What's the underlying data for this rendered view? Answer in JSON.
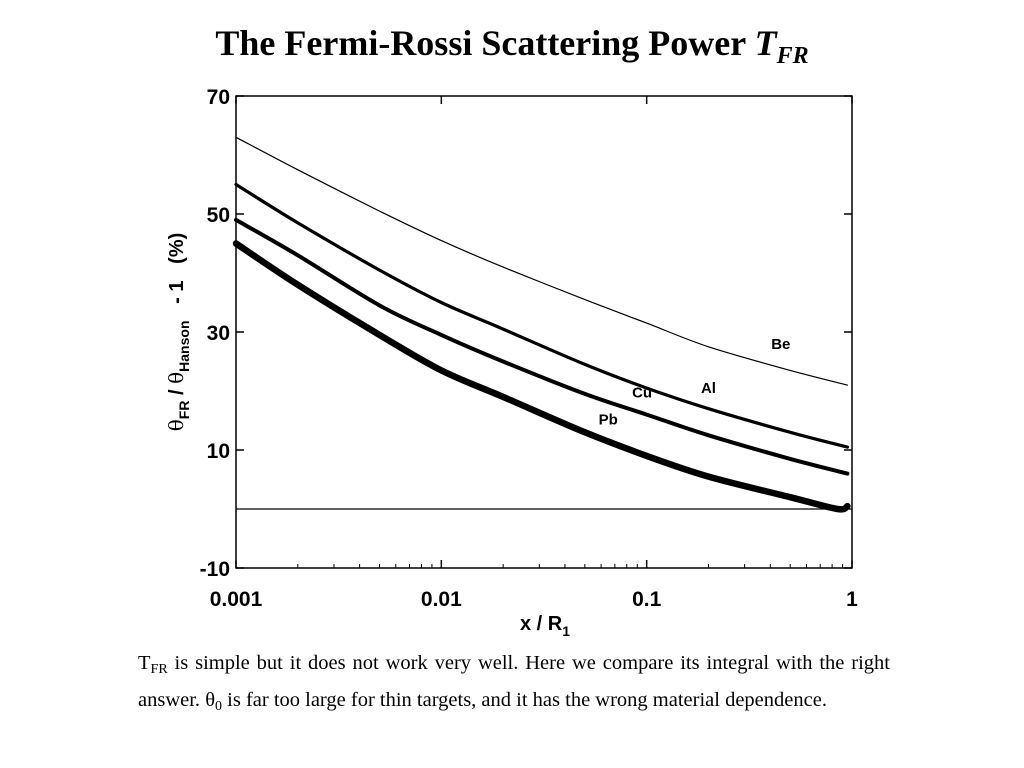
{
  "title": {
    "main": "The Fermi-Rossi Scattering Power ",
    "symbol": "T",
    "subscript": "FR"
  },
  "chart_data": {
    "type": "line",
    "xscale": "log",
    "xlim": [
      0.001,
      1
    ],
    "ylim": [
      -10,
      70
    ],
    "xticks": [
      {
        "value": 0.001,
        "label": "0.001"
      },
      {
        "value": 0.01,
        "label": "0.01"
      },
      {
        "value": 0.1,
        "label": "0.1"
      },
      {
        "value": 1,
        "label": "1"
      }
    ],
    "yticks": [
      {
        "value": 70,
        "label": "70"
      },
      {
        "value": 50,
        "label": "50"
      },
      {
        "value": 30,
        "label": "30"
      },
      {
        "value": 10,
        "label": "10"
      },
      {
        "value": -10,
        "label": "-10"
      }
    ],
    "xlabel": {
      "main": "x / R",
      "sub": "1"
    },
    "ylabel": {
      "theta1": "θ",
      "sub1": "FR",
      "sep": " / ",
      "theta2": "θ",
      "sub2": "Hanson",
      "rest": "   - 1   (%)"
    },
    "reference_line_y": 0,
    "series": [
      {
        "name": "Be",
        "x": [
          0.001,
          0.002,
          0.005,
          0.01,
          0.02,
          0.05,
          0.1,
          0.2,
          0.5,
          0.95
        ],
        "y": [
          63,
          57.5,
          50.5,
          45.5,
          41,
          35.5,
          31.5,
          27.5,
          23.5,
          21
        ]
      },
      {
        "name": "Al",
        "x": [
          0.001,
          0.002,
          0.005,
          0.01,
          0.02,
          0.05,
          0.1,
          0.2,
          0.5,
          0.95
        ],
        "y": [
          55,
          48.5,
          40.5,
          35,
          30.5,
          24.5,
          20.5,
          17,
          13,
          10.5
        ]
      },
      {
        "name": "Cu",
        "x": [
          0.001,
          0.002,
          0.005,
          0.01,
          0.02,
          0.05,
          0.1,
          0.2,
          0.5,
          0.95
        ],
        "y": [
          49,
          43,
          34.5,
          29.5,
          25,
          19.5,
          16,
          12.5,
          8.5,
          6
        ]
      },
      {
        "name": "Pb",
        "x": [
          0.001,
          0.002,
          0.005,
          0.01,
          0.02,
          0.05,
          0.1,
          0.2,
          0.5,
          0.85,
          0.95
        ],
        "y": [
          45,
          38,
          29.5,
          23.5,
          19,
          13,
          9,
          5.5,
          2,
          0,
          0.5
        ]
      }
    ]
  },
  "caption": {
    "t_main": "T",
    "t_sub": "FR",
    "line1": " is simple but it does not work very well. Here we compare its integral with the right answer. ",
    "theta": "θ",
    "theta_sub": "0",
    "line2": " is far too large for thin targets, and it has the wrong material dependence."
  }
}
